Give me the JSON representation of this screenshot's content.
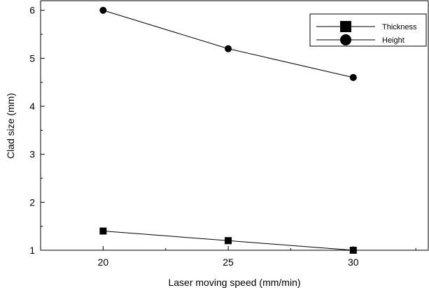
{
  "chart_data": {
    "type": "line",
    "xlabel": "Laser moving speed (mm/min)",
    "ylabel": "Clad size (mm)",
    "x": [
      20,
      25,
      30
    ],
    "xlim": [
      17.5,
      33.0
    ],
    "ylim": [
      1,
      6.2
    ],
    "xticks": [
      "20",
      "25",
      "30"
    ],
    "yticks": [
      "1",
      "2",
      "3",
      "4",
      "5",
      "6"
    ],
    "grid": false,
    "legend_position": "top-right",
    "series": [
      {
        "name": "Thickness",
        "marker": "square",
        "values": [
          1.4,
          1.2,
          1.0
        ]
      },
      {
        "name": "Height",
        "marker": "circle",
        "values": [
          6.0,
          5.2,
          4.6
        ]
      }
    ],
    "colors": {
      "line": "#000000",
      "marker": "#000000",
      "background": "#ffffff"
    }
  }
}
